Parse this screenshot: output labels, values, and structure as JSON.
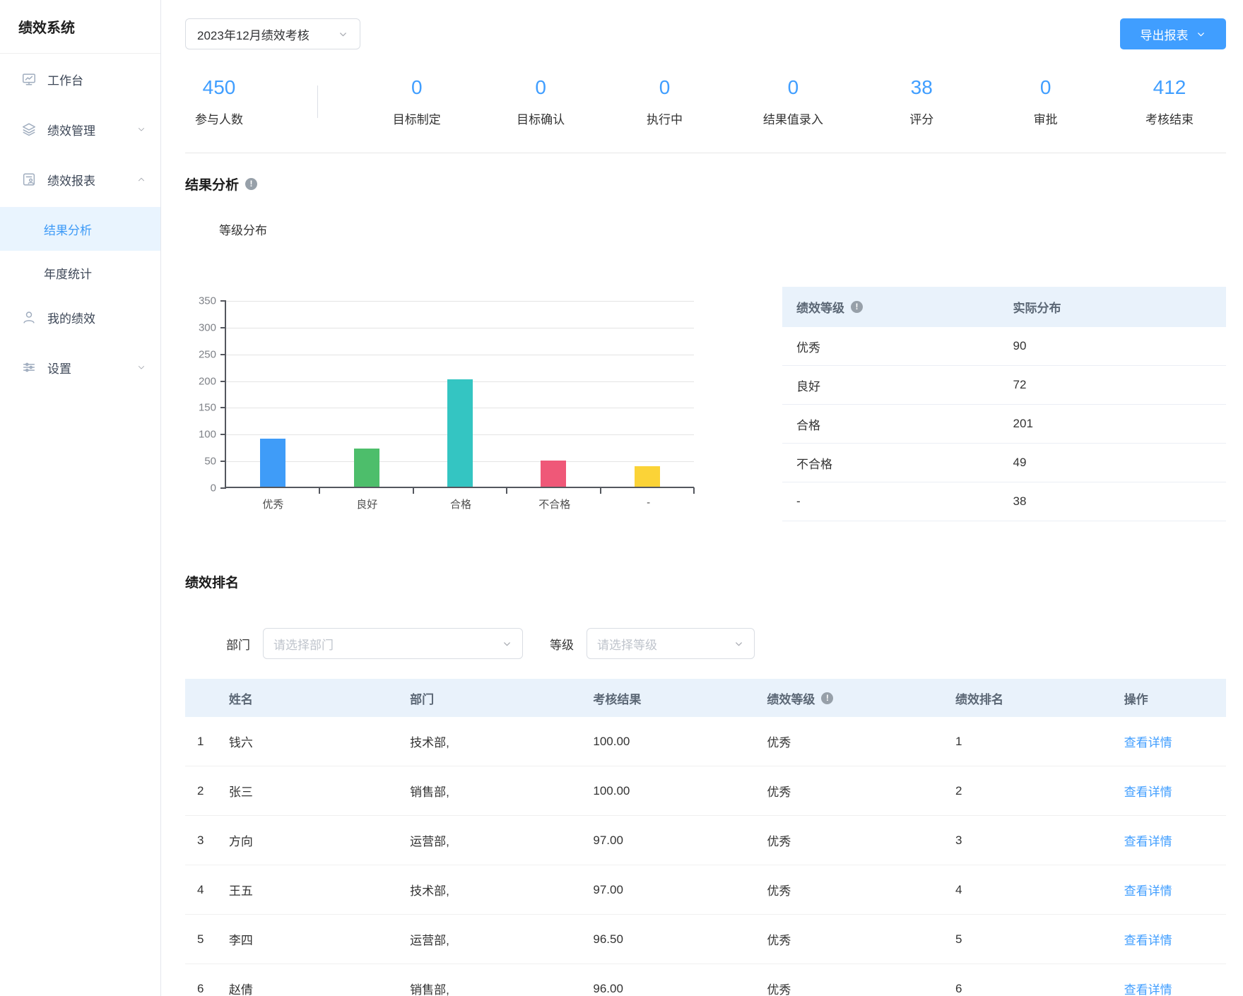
{
  "app": {
    "title": "绩效系统"
  },
  "colors": {
    "accent": "#409EFF",
    "active_menu_bg": "#E9F4FE",
    "table_header_bg": "#E9F2FB"
  },
  "sidebar": {
    "items": [
      {
        "label": "工作台",
        "icon": "dashboard"
      },
      {
        "label": "绩效管理",
        "icon": "layers",
        "chevron": "down"
      },
      {
        "label": "绩效报表",
        "icon": "report",
        "chevron": "up"
      },
      {
        "label": "结果分析",
        "submenu": true,
        "active": true
      },
      {
        "label": "年度统计",
        "submenu": true
      },
      {
        "label": "我的绩效",
        "icon": "user"
      },
      {
        "label": "设置",
        "icon": "sliders",
        "chevron": "down"
      }
    ]
  },
  "header": {
    "period_select": "2023年12月绩效考核",
    "export_button": "导出报表"
  },
  "stats": [
    {
      "value": "450",
      "label": "参与人数"
    },
    {
      "value": "0",
      "label": "目标制定"
    },
    {
      "value": "0",
      "label": "目标确认"
    },
    {
      "value": "0",
      "label": "执行中"
    },
    {
      "value": "0",
      "label": "结果值录入"
    },
    {
      "value": "38",
      "label": "评分"
    },
    {
      "value": "0",
      "label": "审批"
    },
    {
      "value": "412",
      "label": "考核结束"
    }
  ],
  "result_analysis": {
    "title": "结果分析",
    "subtitle": "等级分布"
  },
  "chart_data": {
    "type": "bar",
    "title": "等级分布",
    "categories": [
      "优秀",
      "良好",
      "合格",
      "不合格",
      "-"
    ],
    "values": [
      90,
      72,
      201,
      49,
      38
    ],
    "colors": [
      "#3F9CF8",
      "#4DBE6B",
      "#34C5C2",
      "#EF5878",
      "#FBD337"
    ],
    "xlabel": "",
    "ylabel": "",
    "ylim": [
      0,
      350
    ],
    "ytick_step": 50,
    "grid": true,
    "legend": false
  },
  "distribution_table": {
    "headers": [
      {
        "label": "绩效等级",
        "info": true
      },
      {
        "label": "实际分布",
        "info": false
      }
    ],
    "rows": [
      {
        "grade": "优秀",
        "count": "90"
      },
      {
        "grade": "良好",
        "count": "72"
      },
      {
        "grade": "合格",
        "count": "201"
      },
      {
        "grade": "不合格",
        "count": "49"
      },
      {
        "grade": "-",
        "count": "38"
      }
    ]
  },
  "ranking": {
    "title": "绩效排名",
    "filters": [
      {
        "label": "部门",
        "placeholder": "请选择部门"
      },
      {
        "label": "等级",
        "placeholder": "请选择等级"
      }
    ],
    "table": {
      "headers": [
        {
          "label": "姓名",
          "info": false
        },
        {
          "label": "部门",
          "info": false
        },
        {
          "label": "考核结果",
          "info": false
        },
        {
          "label": "绩效等级",
          "info": true
        },
        {
          "label": "绩效排名",
          "info": false
        },
        {
          "label": "操作",
          "info": false
        }
      ],
      "action_label": "查看详情",
      "rows": [
        {
          "index": "1",
          "name": "钱六",
          "dept": "技术部,",
          "score": "100.00",
          "grade": "优秀",
          "rank": "1"
        },
        {
          "index": "2",
          "name": "张三",
          "dept": "销售部,",
          "score": "100.00",
          "grade": "优秀",
          "rank": "2"
        },
        {
          "index": "3",
          "name": "方向",
          "dept": "运营部,",
          "score": "97.00",
          "grade": "优秀",
          "rank": "3"
        },
        {
          "index": "4",
          "name": "王五",
          "dept": "技术部,",
          "score": "97.00",
          "grade": "优秀",
          "rank": "4"
        },
        {
          "index": "5",
          "name": "李四",
          "dept": "运营部,",
          "score": "96.50",
          "grade": "优秀",
          "rank": "5"
        },
        {
          "index": "6",
          "name": "赵倩",
          "dept": "销售部,",
          "score": "96.00",
          "grade": "优秀",
          "rank": "6"
        }
      ]
    }
  }
}
